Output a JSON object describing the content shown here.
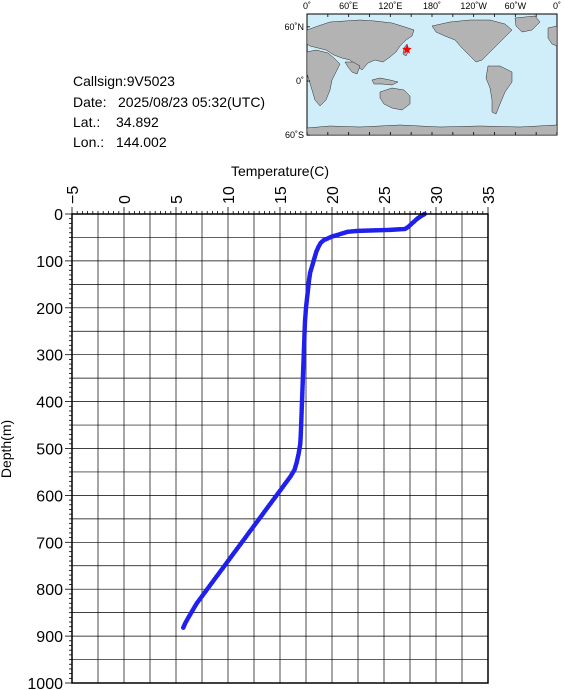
{
  "station": {
    "callsign_label": "Callsign:",
    "callsign": "9V5023",
    "date_label": "Date:",
    "date": "2025/08/23 05:32(UTC)",
    "lat_label": "Lat.:",
    "lat": "34.892",
    "lon_label": "Lon.:",
    "lon": "144.002"
  },
  "map": {
    "lon_labels": [
      "0˚",
      "60˚E",
      "120˚E",
      "180˚",
      "120˚W",
      "60˚W",
      "0˚"
    ],
    "lat_labels": [
      "60˚N",
      "0˚",
      "60˚S"
    ],
    "marker_lat": 34.892,
    "marker_lon": 144.002,
    "ocean_color": "#cfeefa",
    "land_color": "#b3b3b3",
    "marker_color": "#ff0000"
  },
  "chart_data": {
    "type": "scatter",
    "xlabel": "Temperature(C)",
    "ylabel": "Depth(m)",
    "xlim": [
      -5,
      35
    ],
    "ylim": [
      0,
      1000
    ],
    "y_inverted": true,
    "x_ticks": [
      -5,
      0,
      5,
      10,
      15,
      20,
      25,
      30,
      35
    ],
    "y_ticks": [
      0,
      100,
      200,
      300,
      400,
      500,
      600,
      700,
      800,
      900,
      1000
    ],
    "grid": true,
    "series_color": "#2020ee",
    "profile": [
      [
        28.9,
        0
      ],
      [
        28.6,
        4
      ],
      [
        28.2,
        10
      ],
      [
        27.9,
        16
      ],
      [
        27.6,
        22
      ],
      [
        27.3,
        28
      ],
      [
        27.0,
        32
      ],
      [
        25.5,
        34
      ],
      [
        24.0,
        35
      ],
      [
        22.5,
        36
      ],
      [
        21.5,
        38
      ],
      [
        20.9,
        42
      ],
      [
        20.5,
        45
      ],
      [
        20.0,
        48
      ],
      [
        19.6,
        52
      ],
      [
        19.2,
        56
      ],
      [
        18.9,
        62
      ],
      [
        18.7,
        70
      ],
      [
        18.5,
        80
      ],
      [
        18.3,
        95
      ],
      [
        18.1,
        110
      ],
      [
        17.9,
        125
      ],
      [
        17.8,
        140
      ],
      [
        17.7,
        160
      ],
      [
        17.6,
        180
      ],
      [
        17.5,
        200
      ],
      [
        17.4,
        230
      ],
      [
        17.35,
        260
      ],
      [
        17.3,
        290
      ],
      [
        17.25,
        320
      ],
      [
        17.2,
        350
      ],
      [
        17.15,
        380
      ],
      [
        17.1,
        410
      ],
      [
        17.05,
        440
      ],
      [
        17.0,
        470
      ],
      [
        16.95,
        490
      ],
      [
        16.8,
        510
      ],
      [
        16.6,
        530
      ],
      [
        16.4,
        545
      ],
      [
        16.0,
        560
      ],
      [
        15.5,
        575
      ],
      [
        15.0,
        590
      ],
      [
        14.5,
        605
      ],
      [
        14.0,
        620
      ],
      [
        13.5,
        635
      ],
      [
        13.0,
        650
      ],
      [
        12.5,
        665
      ],
      [
        12.0,
        680
      ],
      [
        11.5,
        695
      ],
      [
        11.0,
        710
      ],
      [
        10.5,
        725
      ],
      [
        10.0,
        740
      ],
      [
        9.5,
        755
      ],
      [
        9.0,
        770
      ],
      [
        8.5,
        785
      ],
      [
        8.0,
        800
      ],
      [
        7.5,
        815
      ],
      [
        7.0,
        830
      ],
      [
        6.6,
        845
      ],
      [
        6.2,
        860
      ],
      [
        5.9,
        872
      ],
      [
        5.7,
        882
      ]
    ]
  }
}
